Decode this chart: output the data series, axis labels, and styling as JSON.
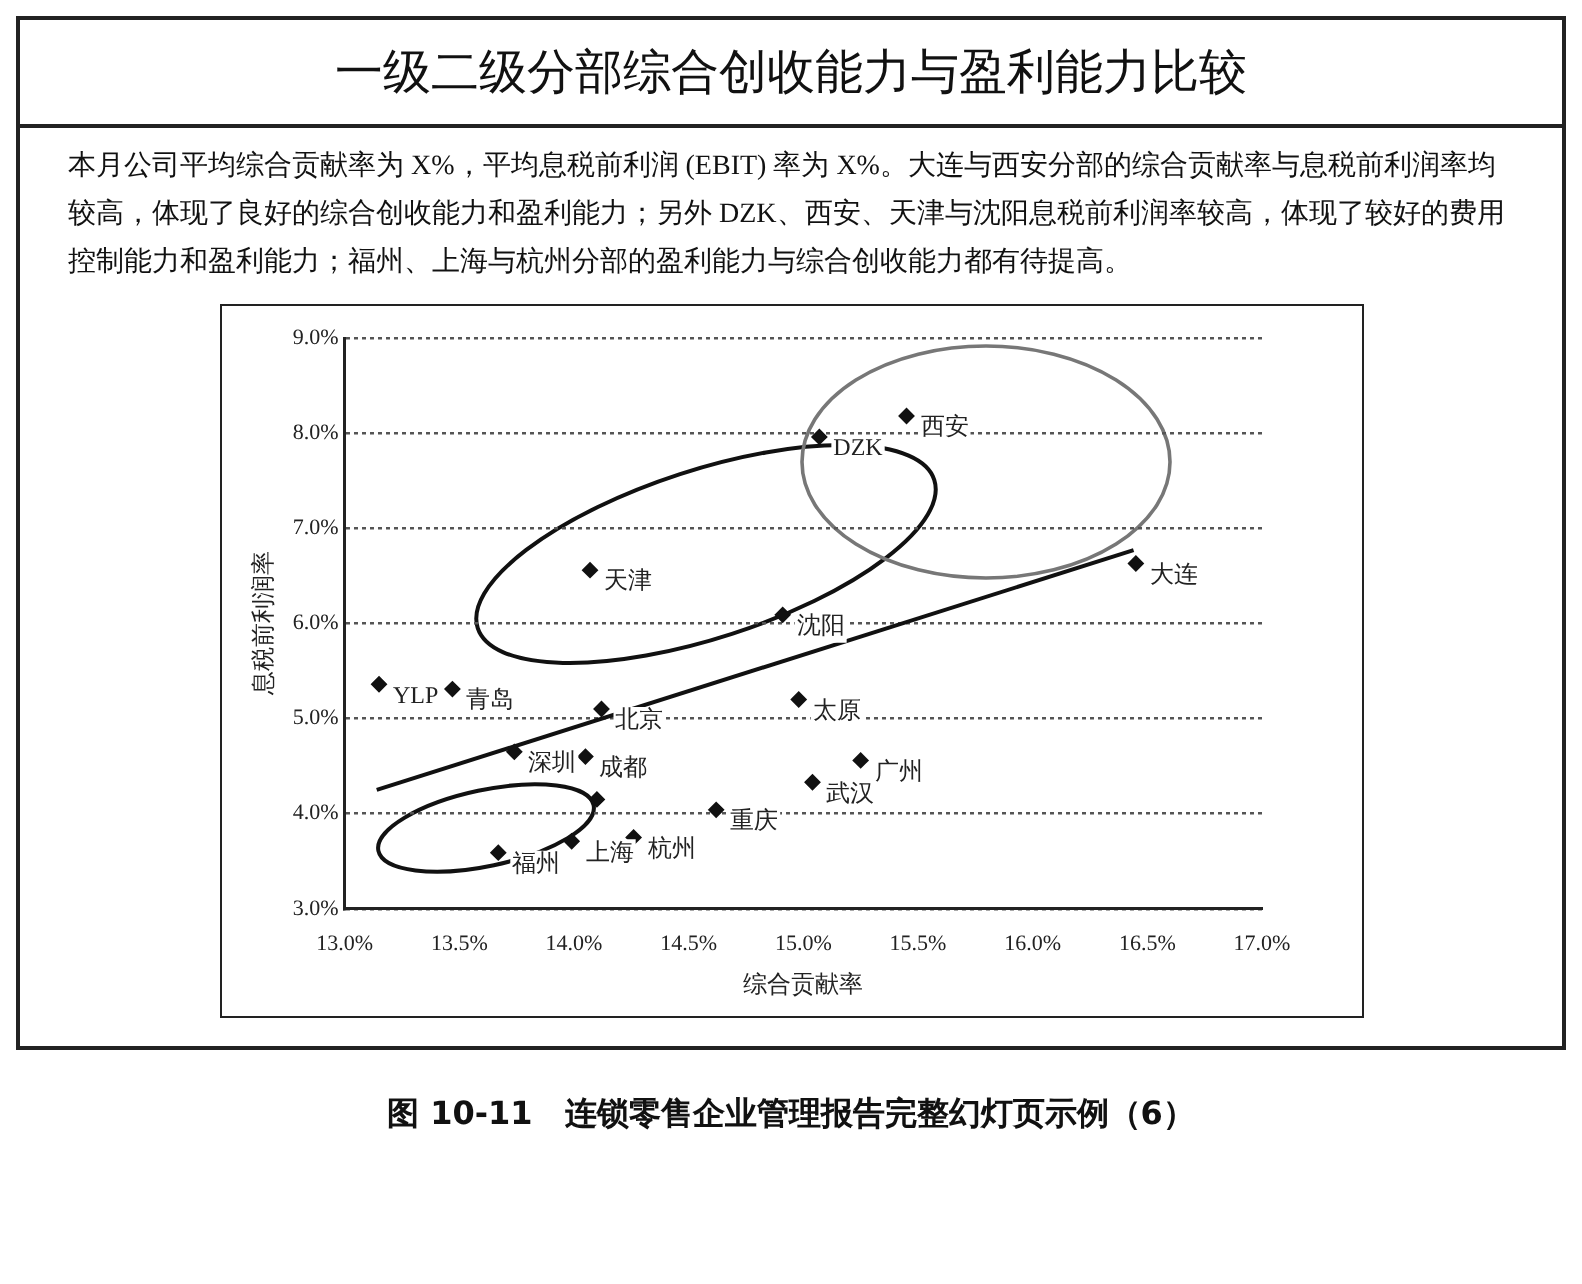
{
  "chart_data": {
    "type": "scatter",
    "title": "一级二级分部综合创收能力与盈利能力比较",
    "subtitle": "本月公司平均综合贡献率为 X%，平均息税前利润 (EBIT) 率为 X%。大连与西安分部的综合贡献率与息税前利润率均较高，体现了良好的综合创收能力和盈利能力；另外 DZK、西安、天津与沈阳息税前利润率较高，体现了较好的费用控制能力和盈利能力；福州、上海与杭州分部的盈利能力与综合创收能力都有待提高。",
    "xlabel": "综合贡献率",
    "ylabel": "息税前利润率",
    "annotations": [
      "图 10-11　连锁零售企业管理报告完整幻灯页示例（6）"
    ],
    "series": [
      {
        "name": "YLP",
        "color": "#111111",
        "x": [
          13.15
        ],
        "values": [
          5.36
        ]
      },
      {
        "name": "青岛",
        "color": "#111111",
        "x": [
          13.47
        ],
        "values": [
          5.31
        ]
      },
      {
        "name": "天津",
        "color": "#111111",
        "x": [
          14.07
        ],
        "values": [
          6.56
        ]
      },
      {
        "name": "沈阳",
        "color": "#111111",
        "x": [
          14.91
        ],
        "values": [
          6.09
        ]
      },
      {
        "name": "北京",
        "color": "#111111",
        "x": [
          14.12
        ],
        "values": [
          5.1
        ]
      },
      {
        "name": "深圳",
        "color": "#111111",
        "x": [
          13.74
        ],
        "values": [
          4.65
        ]
      },
      {
        "name": "成都",
        "color": "#111111",
        "x": [
          14.05
        ],
        "values": [
          4.6
        ]
      },
      {
        "color": "#111111",
        "x": [
          14.1
        ],
        "values": [
          4.15
        ]
      },
      {
        "name": "上海",
        "color": "#111111",
        "x": [
          13.99
        ],
        "values": [
          3.71
        ]
      },
      {
        "name": "杭州",
        "color": "#111111",
        "x": [
          14.26
        ],
        "values": [
          3.75
        ]
      },
      {
        "name": "福州",
        "color": "#111111",
        "x": [
          13.67
        ],
        "values": [
          3.59
        ]
      },
      {
        "name": "重庆",
        "color": "#111111",
        "x": [
          14.62
        ],
        "values": [
          4.04
        ]
      },
      {
        "name": "DZK",
        "color": "#111111",
        "x": [
          15.07
        ],
        "values": [
          7.96
        ]
      },
      {
        "name": "西安",
        "color": "#111111",
        "x": [
          15.45
        ],
        "values": [
          8.18
        ]
      },
      {
        "name": "大连",
        "color": "#111111",
        "x": [
          16.45
        ],
        "values": [
          6.63
        ]
      },
      {
        "name": "太原",
        "color": "#111111",
        "x": [
          14.98
        ],
        "values": [
          5.2
        ]
      },
      {
        "name": "武汉",
        "color": "#111111",
        "x": [
          15.04
        ],
        "values": [
          4.33
        ]
      },
      {
        "name": "广州",
        "color": "#111111",
        "x": [
          15.25
        ],
        "values": [
          4.56
        ]
      },
      {
        "type": "line",
        "color": "#111111",
        "marker": "none",
        "x": [
          13.14,
          16.44
        ],
        "values": [
          4.25,
          6.77
        ]
      }
    ],
    "xlim": [
      13,
      17
    ],
    "ylim": [
      3,
      9
    ],
    "xticks": [
      {
        "value": 13,
        "label": "13.0%"
      },
      {
        "value": 13.5,
        "label": "13.5%"
      },
      {
        "value": 14,
        "label": "14.0%"
      },
      {
        "value": 14.5,
        "label": "14.5%"
      },
      {
        "value": 15,
        "label": "15.0%"
      },
      {
        "value": 15.5,
        "label": "15.5%"
      },
      {
        "value": 16,
        "label": "16.0%"
      },
      {
        "value": 16.5,
        "label": "16.5%"
      },
      {
        "value": 17,
        "label": "17.0%"
      }
    ],
    "yticks": [
      {
        "value": 3,
        "label": "3.0%"
      },
      {
        "value": 4,
        "label": "4.0%"
      },
      {
        "value": 5,
        "label": "5.0%"
      },
      {
        "value": 6,
        "label": "6.0%"
      },
      {
        "value": 7,
        "label": "7.0%"
      },
      {
        "value": 8,
        "label": "8.0%"
      },
      {
        "value": 9,
        "label": "9.0%"
      }
    ],
    "grid": "y",
    "legend": false,
    "marker": "diamond"
  }
}
